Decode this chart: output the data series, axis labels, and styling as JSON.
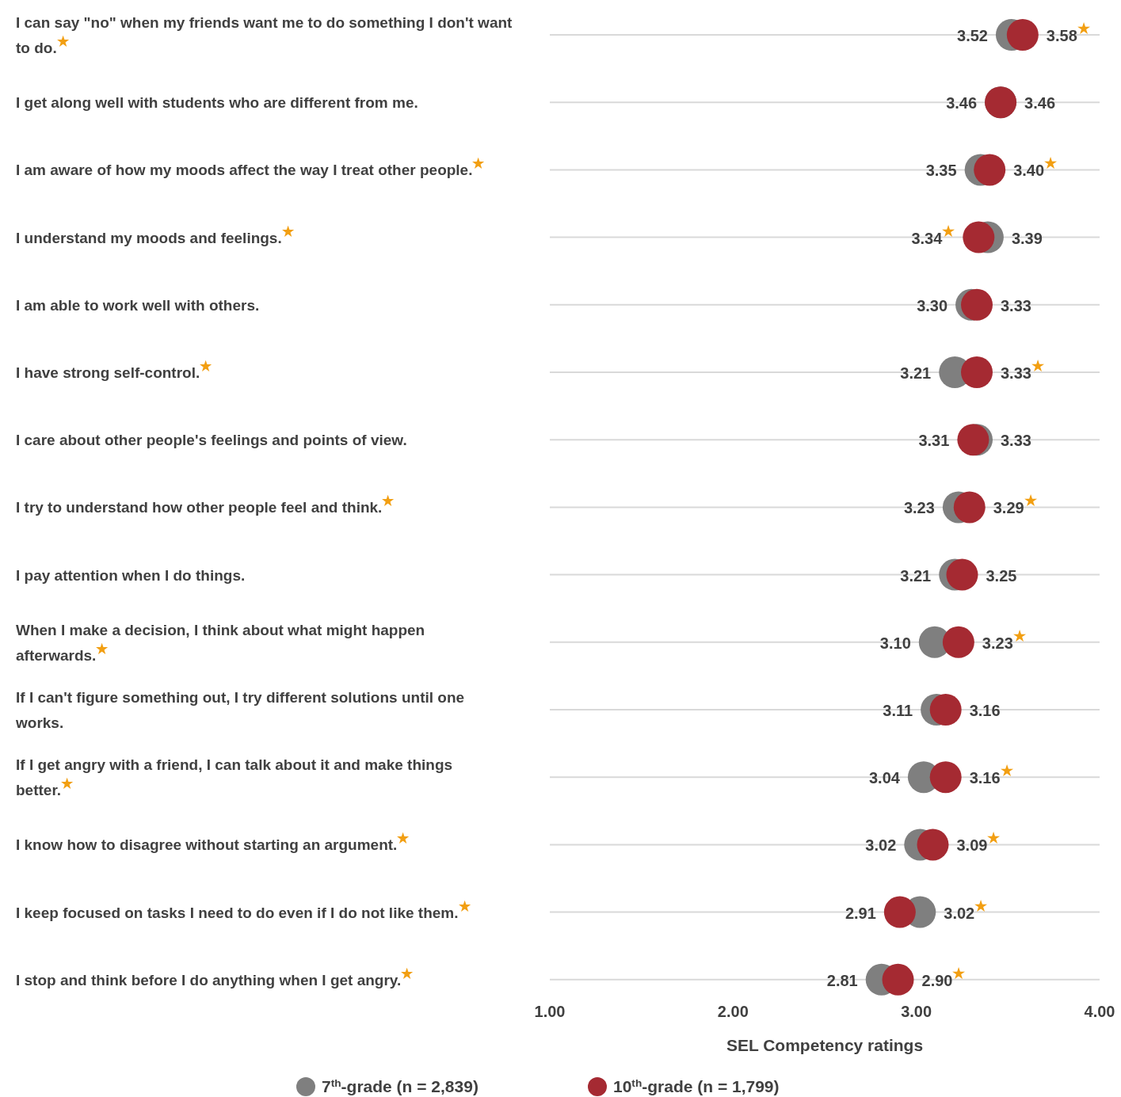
{
  "chart_data": {
    "type": "scatter",
    "orientation": "horizontal",
    "xlabel": "SEL Competency ratings",
    "xlim": [
      1,
      4
    ],
    "xticks": [
      {
        "value": 1,
        "label": "1.00"
      },
      {
        "value": 2,
        "label": "2.00"
      },
      {
        "value": 3,
        "label": "3.00"
      },
      {
        "value": 4,
        "label": "4.00"
      }
    ],
    "grid": "y",
    "legend": "bottom",
    "marker": "circle",
    "categories": [
      "I can say \"no\" when my friends want me to do something I don't want to do.$^{★}$",
      "I get along well with students who are different from me.",
      "I am aware of how my moods affect the way I treat other people.$^{★}$",
      "I understand my moods and feelings.$^{★}$",
      "I am able to work well with others.",
      "I have strong self-control.$^{★}$",
      "I care about other people's feelings and points of view.",
      "I try to understand how other people feel and think.$^{★}$",
      "I pay attention when I do things.",
      "When I make a decision, I think about what might happen afterwards.$^{★}$",
      "If I can't figure something out, I try different solutions until one works.",
      "If I get angry with a friend, I can talk about it and make things better.$^{★}$",
      "I know how to disagree without starting an argument.$^{★}$",
      "I keep focused on tasks I need to do even if I do not like them.$^{★}$",
      "I stop and think before I do anything when I get angry.$^{★}$"
    ],
    "series": [
      {
        "name": "7$^{th}$-grade (n = 2,839)",
        "color": "#7f7f7f",
        "values": [
          3.52,
          3.46,
          3.35,
          3.39,
          3.3,
          3.21,
          3.33,
          3.23,
          3.21,
          3.1,
          3.11,
          3.04,
          3.02,
          3.02,
          2.81
        ],
        "value_labels": [
          "3.52",
          "3.46",
          "3.35",
          "3.39",
          "3.30",
          "3.21",
          "3.33",
          "3.23",
          "3.21",
          "3.10",
          "3.11",
          "3.04",
          "3.02",
          "3.02$^{★}$",
          "2.81"
        ]
      },
      {
        "name": "10$^{th}$-grade (n = 1,799)",
        "color": "#a52a32",
        "values": [
          3.58,
          3.46,
          3.4,
          3.34,
          3.33,
          3.33,
          3.31,
          3.29,
          3.25,
          3.23,
          3.16,
          3.16,
          3.09,
          2.91,
          2.9
        ],
        "value_labels": [
          "3.58$^{★}$",
          "3.46",
          "3.40$^{★}$",
          "3.34$^{★}$",
          "3.33",
          "3.33$^{★}$",
          "3.31",
          "3.29$^{★}$",
          "3.25",
          "3.23$^{★}$",
          "3.16",
          "3.16$^{★}$",
          "3.09$^{★}$",
          "2.91",
          "2.90$^{★}$"
        ]
      }
    ]
  }
}
